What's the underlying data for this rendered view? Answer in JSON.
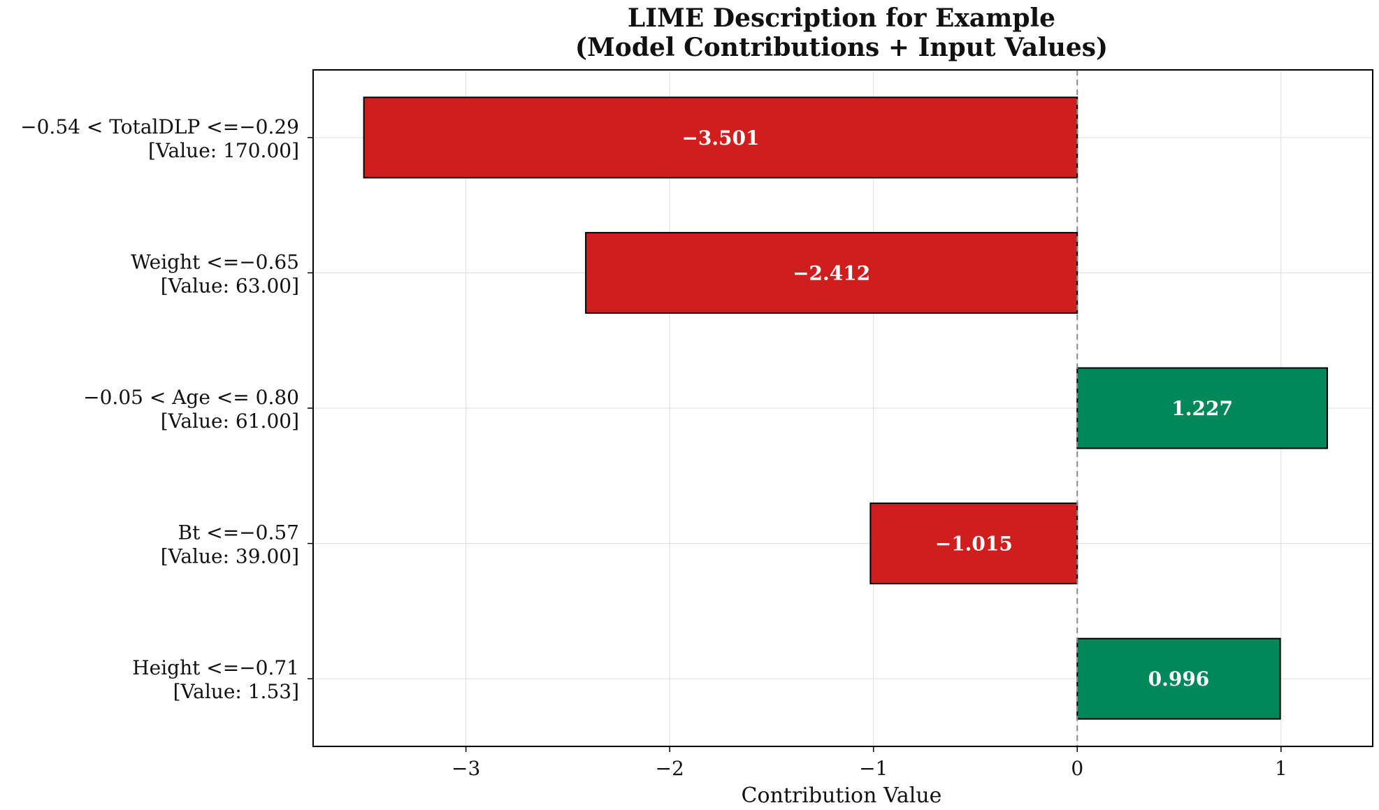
{
  "chart_data": {
    "type": "bar",
    "orientation": "horizontal",
    "title_line1": "LIME Description for Example",
    "title_line2": "(Model Contributions + Input Values)",
    "xlabel": "Contribution Value",
    "ylabel": "",
    "xlim": [
      -3.75,
      1.45
    ],
    "xticks": [
      -3,
      -2,
      -1,
      0,
      1
    ],
    "xtick_labels": [
      "−3",
      "−2",
      "−1",
      "0",
      "1"
    ],
    "grid": true,
    "colors": {
      "negative": "#d01e1e",
      "positive": "#00875a",
      "zero_line": "#888888",
      "grid": "#e2e2e2"
    },
    "bars": [
      {
        "condition": "−0.54 < TotalDLP <=−0.29",
        "value_label": "[Value: 170.00]",
        "value": -3.501,
        "label": "−3.501"
      },
      {
        "condition": "Weight <=−0.65",
        "value_label": "[Value: 63.00]",
        "value": -2.412,
        "label": "−2.412"
      },
      {
        "condition": "−0.05 < Age <= 0.80",
        "value_label": "[Value: 61.00]",
        "value": 1.227,
        "label": "1.227"
      },
      {
        "condition": "Bt <=−0.57",
        "value_label": "[Value: 39.00]",
        "value": -1.015,
        "label": "−1.015"
      },
      {
        "condition": "Height <=−0.71",
        "value_label": "[Value: 1.53]",
        "value": 0.996,
        "label": "0.996"
      }
    ]
  }
}
